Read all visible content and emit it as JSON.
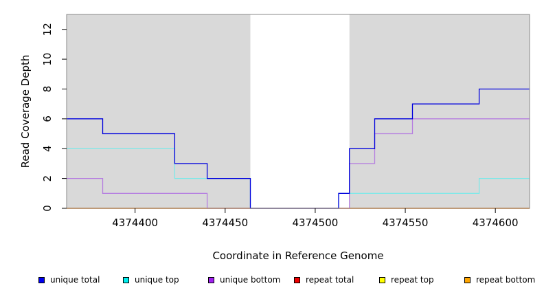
{
  "chart_data": {
    "type": "line",
    "step": true,
    "xlabel": "Coordinate in Reference Genome",
    "ylabel": "Read Coverage Depth",
    "xlim": [
      4374362,
      4374619
    ],
    "ylim": [
      0,
      13
    ],
    "x_ticks": [
      4374400,
      4374450,
      4374500,
      4374550,
      4374600
    ],
    "y_ticks": [
      0,
      2,
      4,
      6,
      8,
      10,
      12
    ],
    "shaded_regions": [
      {
        "x0": 4374362,
        "x1": 4374464,
        "color": "#d9d9d9"
      },
      {
        "x0": 4374519,
        "x1": 4374619,
        "color": "#d9d9d9"
      }
    ],
    "grid": false,
    "legend_position": "bottom",
    "series": [
      {
        "name": "unique total",
        "color": "#0000dd",
        "x": [
          4374362,
          4374382,
          4374422,
          4374440,
          4374464,
          4374513,
          4374519,
          4374533,
          4374554,
          4374591,
          4374619
        ],
        "values": [
          6,
          5,
          3,
          2,
          0,
          1,
          4,
          6,
          7,
          8,
          8
        ]
      },
      {
        "name": "unique top",
        "color": "#7ee8e8",
        "x": [
          4374362,
          4374422,
          4374464,
          4374513,
          4374591,
          4374619
        ],
        "values": [
          4,
          2,
          0,
          1,
          2,
          2
        ]
      },
      {
        "name": "unique bottom",
        "color": "#b57ee0",
        "x": [
          4374362,
          4374382,
          4374440,
          4374519,
          4374533,
          4374554,
          4374619
        ],
        "values": [
          2,
          1,
          0,
          3,
          5,
          6,
          6
        ]
      },
      {
        "name": "repeat total",
        "color": "#ee0000",
        "x": [
          4374362,
          4374619
        ],
        "values": [
          0,
          0
        ]
      },
      {
        "name": "repeat top",
        "color": "#eeee00",
        "x": [
          4374362,
          4374619
        ],
        "values": [
          0,
          0
        ]
      },
      {
        "name": "repeat bottom",
        "color": "#ffa500",
        "x": [
          4374362,
          4374619
        ],
        "values": [
          0,
          0
        ]
      }
    ]
  },
  "legend": {
    "items": [
      {
        "label": "unique total",
        "color": "#0000ee"
      },
      {
        "label": "unique top",
        "color": "#00eeee"
      },
      {
        "label": "unique bottom",
        "color": "#a020f0"
      },
      {
        "label": "repeat total",
        "color": "#ee0000"
      },
      {
        "label": "repeat top",
        "color": "#ffff00"
      },
      {
        "label": "repeat bottom",
        "color": "#ffa500"
      }
    ]
  }
}
